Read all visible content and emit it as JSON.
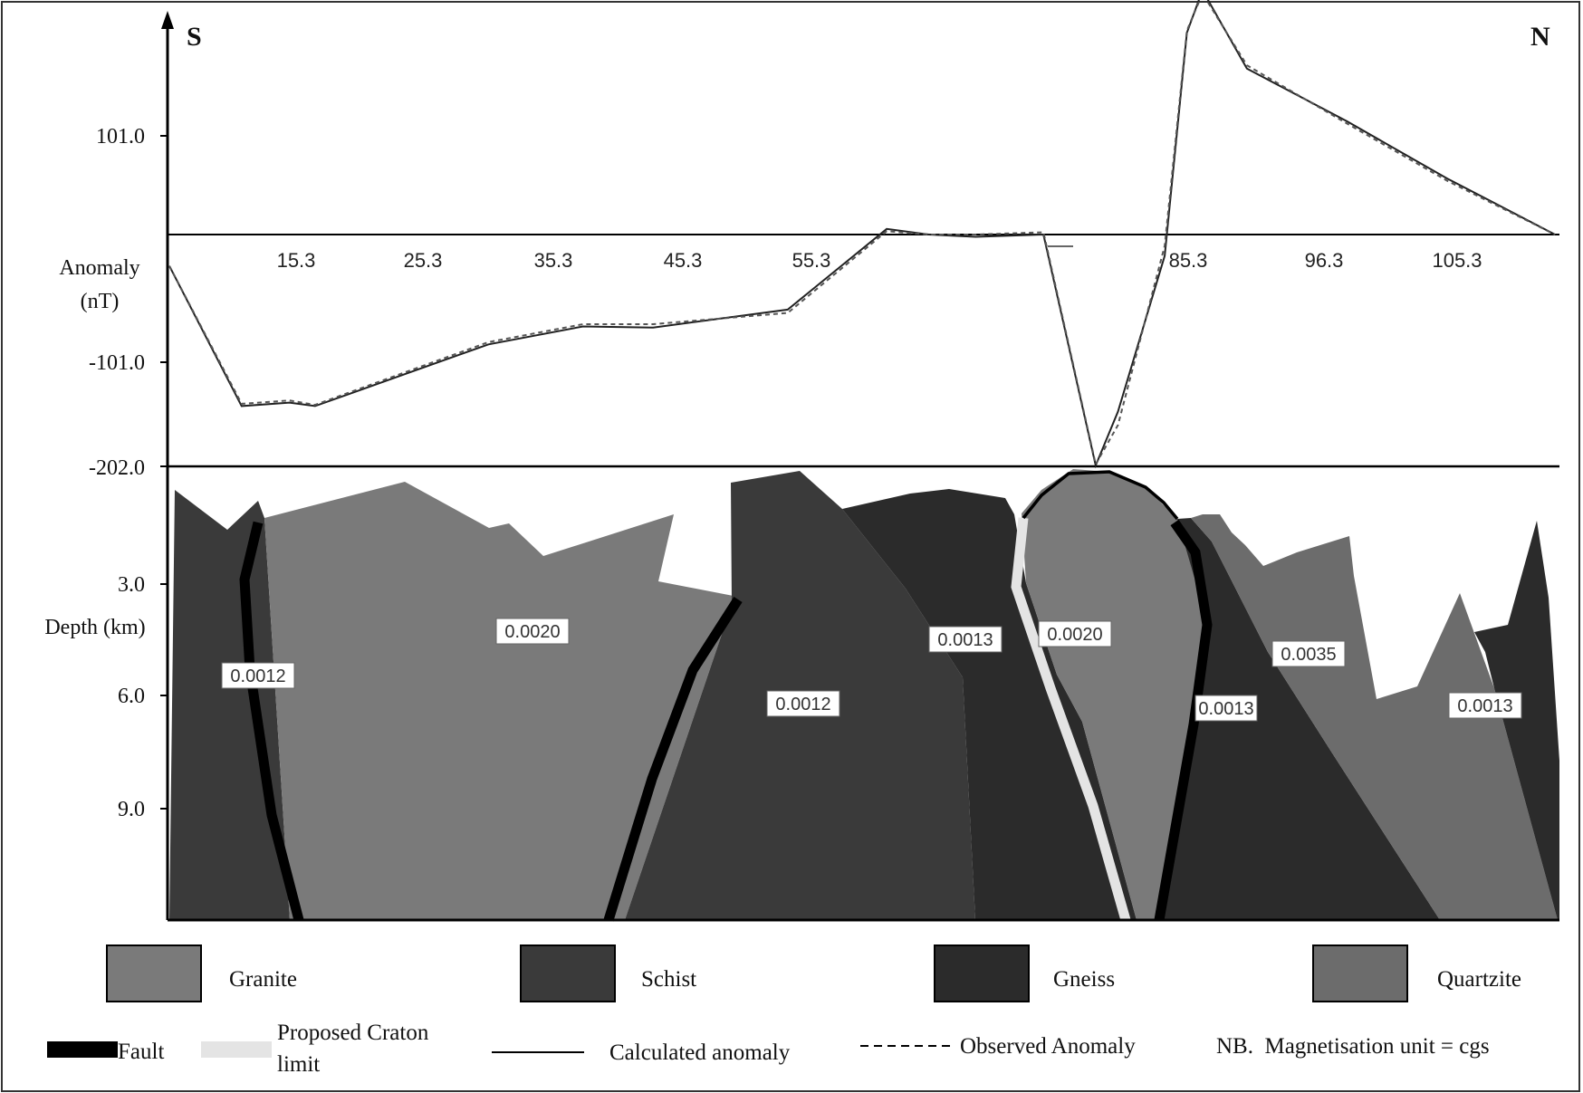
{
  "chart_data": {
    "type": "line",
    "direction_left": "S",
    "direction_right": "N",
    "anomaly_axis": {
      "label_line1": "Anomaly",
      "label_line2": "(nT)",
      "ticks": [
        101.0,
        -101.0,
        -202.0
      ],
      "tick_labels": [
        "101.0",
        "-101.0",
        "-202.0"
      ],
      "range": [
        -202,
        210
      ]
    },
    "distance_axis": {
      "ticks": [
        15.3,
        25.3,
        35.3,
        45.3,
        55.3,
        85.3,
        96.3,
        105.3
      ],
      "tick_labels": [
        "15.3",
        "25.3",
        "35.3",
        "45.3",
        "55.3",
        "85.3",
        "96.3",
        "105.3"
      ],
      "range": [
        0,
        125
      ]
    },
    "depth_axis": {
      "label": "Depth (km)",
      "ticks": [
        3.0,
        6.0,
        9.0
      ],
      "tick_labels": [
        "3.0",
        "6.0",
        "9.0"
      ],
      "range": [
        0,
        12
      ]
    },
    "series": [
      {
        "name": "Calculated anomaly",
        "x": [
          0,
          6.5,
          10.8,
          13.1,
          28.7,
          37.2,
          43.5,
          55.6,
          64.5,
          68.3,
          72.5,
          78.6,
          83.3,
          85.3,
          89.5,
          91.5,
          92.9,
          96.9,
          105.9,
          114.9,
          124.6
        ],
        "y": [
          -28,
          -153,
          -150,
          -153,
          -98,
          -82,
          -83,
          -67,
          5,
          0,
          -2,
          0,
          -206,
          -158,
          -19,
          180,
          218,
          148,
          101,
          50,
          0
        ]
      },
      {
        "name": "Observed Anomaly",
        "x": [
          0,
          6.5,
          10.8,
          13.1,
          28.7,
          37.2,
          43.5,
          55.6,
          64.5,
          68.3,
          72.5,
          78.6,
          83.3,
          85.3,
          89.5,
          91.5,
          92.9,
          96.9,
          105.9,
          114.9,
          124.6
        ],
        "y": [
          -28,
          -151,
          -148,
          -152,
          -96,
          -80,
          -80,
          -70,
          3,
          0,
          0,
          2,
          -205,
          -170,
          -10,
          182,
          215,
          151,
          99,
          48,
          0
        ]
      }
    ],
    "bodies": [
      {
        "rock": "Schist",
        "magnetisation": "0.0012"
      },
      {
        "rock": "Granite",
        "magnetisation": "0.0020"
      },
      {
        "rock": "Schist",
        "magnetisation": "0.0012"
      },
      {
        "rock": "Gneiss",
        "magnetisation": "0.0013"
      },
      {
        "rock": "Granite",
        "magnetisation": "0.0020"
      },
      {
        "rock": "Gneiss",
        "magnetisation": "0.0013"
      },
      {
        "rock": "Quartzite",
        "magnetisation": "0.0035"
      },
      {
        "rock": "Gneiss",
        "magnetisation": "0.0013"
      }
    ],
    "legend": {
      "rocks": [
        {
          "name": "Granite",
          "color": "#7a7a7a"
        },
        {
          "name": "Schist",
          "color": "#3a3a3a"
        },
        {
          "name": "Gneiss",
          "color": "#2b2b2b"
        },
        {
          "name": "Quartzite",
          "color": "#6c6c6c"
        }
      ],
      "lines": [
        {
          "name": "Fault",
          "color": "#000000"
        },
        {
          "name_line1": "Proposed Craton",
          "name_line2": "limit",
          "color": "#e4e4e4"
        },
        {
          "name": "Calculated anomaly",
          "style": "solid"
        },
        {
          "name": "Observed Anomaly",
          "style": "dashed"
        }
      ],
      "note": "NB.  Magnetisation unit = cgs"
    },
    "grid": false
  }
}
